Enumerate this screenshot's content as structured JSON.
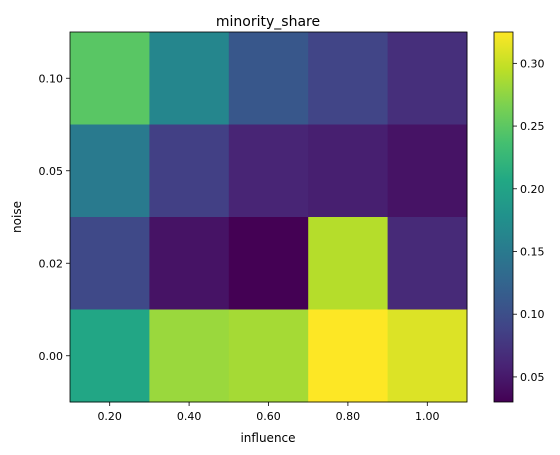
{
  "chart_data": {
    "type": "heatmap",
    "title": "minority_share",
    "xlabel": "influence",
    "ylabel": "noise",
    "x": [
      "0.20",
      "0.40",
      "0.60",
      "0.80",
      "1.00"
    ],
    "y": [
      "0.10",
      "0.05",
      "0.02",
      "0.00"
    ],
    "values": [
      [
        0.248,
        0.165,
        0.11,
        0.09,
        0.07
      ],
      [
        0.15,
        0.085,
        0.06,
        0.055,
        0.045
      ],
      [
        0.095,
        0.045,
        0.03,
        0.292,
        0.065
      ],
      [
        0.205,
        0.28,
        0.285,
        0.325,
        0.31
      ]
    ],
    "colorbar": {
      "ticks": [
        "0.05",
        "0.10",
        "0.15",
        "0.20",
        "0.25",
        "0.30"
      ],
      "range": [
        0.03,
        0.325
      ]
    },
    "colormap": "viridis"
  }
}
